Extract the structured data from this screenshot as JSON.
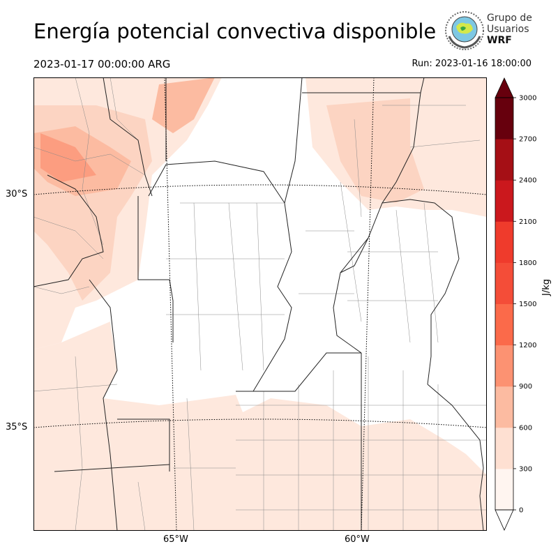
{
  "header": {
    "title": "Energía potencial convectiva disponible",
    "valid_time": "2023-01-17 00:00:00 ARG",
    "run_time": "Run: 2023-01-16 18:00:00"
  },
  "logo": {
    "line1": "Grupo de",
    "line2": "Usuarios",
    "line3": "WRF"
  },
  "map": {
    "lat_labels": [
      "30°S",
      "35°S"
    ],
    "lon_labels": [
      "65°W",
      "60°W"
    ],
    "fill_colors": [
      "#fee8dd",
      "#fcd4c2",
      "#fcbba1",
      "#fc9d80"
    ]
  },
  "colorbar": {
    "units": "J/kg",
    "ticks": [
      "0",
      "300",
      "600",
      "900",
      "1200",
      "1500",
      "1800",
      "2100",
      "2400",
      "2700",
      "3000"
    ],
    "colors": [
      "#fff5f0",
      "#fee0d2",
      "#fcbba1",
      "#fc9272",
      "#fb6a4a",
      "#f44d38",
      "#ef3b2c",
      "#cb181d",
      "#a50f15",
      "#67000d"
    ]
  }
}
